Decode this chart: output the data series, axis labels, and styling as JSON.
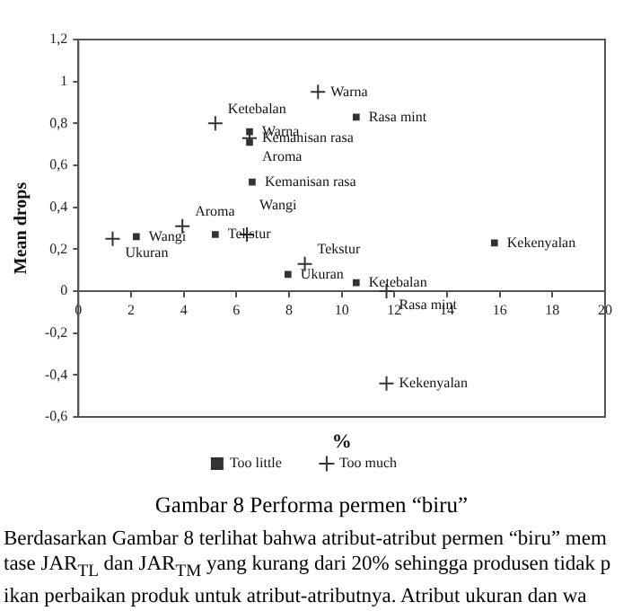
{
  "chart_data": {
    "type": "scatter",
    "title": "Gambar 8 Performa permen “biru”",
    "xlabel": "%",
    "ylabel": "Mean drops",
    "series": [
      {
        "name": "Too little",
        "color": "#333333",
        "marker": "square",
        "x": [
          10.55,
          6.6,
          6.5,
          6.5,
          2.2,
          5.2,
          7.96,
          10.55,
          15.8
        ],
        "values": [
          0.83,
          0.52,
          0.76,
          0.71,
          0.26,
          0.27,
          0.08,
          0.04,
          0.23
        ]
      },
      {
        "name": "Too much",
        "color": "#333333",
        "marker": "cross",
        "x": [
          9.1,
          5.2,
          6.5,
          1.3,
          3.95,
          6.4,
          8.6,
          11.7,
          11.7
        ],
        "values": [
          0.95,
          0.8,
          0.73,
          0.25,
          0.31,
          0.27,
          0.13,
          0,
          -0.44
        ]
      }
    ],
    "xlim": [
      0,
      20
    ],
    "xticks": [
      0,
      2,
      4,
      6,
      8,
      10,
      12,
      14,
      16,
      18,
      20
    ],
    "ylim": [
      -0.6,
      1.2
    ],
    "yticks": [
      {
        "value": -0.6,
        "label": "-0,6"
      },
      {
        "value": -0.4,
        "label": "-0,4"
      },
      {
        "value": -0.2,
        "label": "-0,2"
      },
      0,
      {
        "value": 0.2,
        "label": "0,2"
      },
      {
        "value": 0.4,
        "label": "0,4"
      },
      {
        "value": 0.6,
        "label": "0,6"
      },
      {
        "value": 0.8,
        "label": "0,8"
      },
      1,
      {
        "value": 1.2,
        "label": "1,2"
      }
    ],
    "grid": false,
    "legend": "bottom",
    "annotations": [
      {
        "text": "Rasa mint",
        "x": 10.55,
        "y": 0.83
      },
      {
        "text": "Kemanisan rasa",
        "x": 6.6,
        "y": 0.52
      },
      {
        "text": "Warna",
        "x": 6.5,
        "y": 0.76
      },
      {
        "text": "Aroma",
        "x": 6.5,
        "y": 0.71
      },
      {
        "text": "Wangi",
        "x": 2.2,
        "y": 0.26
      },
      {
        "text": "Tekstur",
        "x": 5.2,
        "y": 0.27
      },
      {
        "text": "Ukuran",
        "x": 7.96,
        "y": 0.08
      },
      {
        "text": "Ketebalan",
        "x": 10.55,
        "y": 0.04
      },
      {
        "text": "Kekenyalan",
        "x": 15.8,
        "y": 0.23
      },
      {
        "text": "Warna",
        "x": 9.1,
        "y": 0.95
      },
      {
        "text": "Ketebalan",
        "x": 5.2,
        "y": 0.8
      },
      {
        "text": "Kemanisan rasa",
        "x": 6.5,
        "y": 0.73
      },
      {
        "text": "Ukuran",
        "x": 1.3,
        "y": 0.25
      },
      {
        "text": "Aroma",
        "x": 3.95,
        "y": 0.31
      },
      {
        "text": "Wangi",
        "x": 6.4,
        "y": 0.27
      },
      {
        "text": "Tekstur",
        "x": 8.6,
        "y": 0.13
      },
      {
        "text": "Rasa mint",
        "x": 11.7,
        "y": 0
      },
      {
        "text": "Kekenyalan",
        "x": 11.7,
        "y": -0.44
      },
      "Berdasarkan Gambar 8 terlihat bahwa atribut-atribut permen “biru” mem",
      "tase JAR$_{TL}$ dan JAR$_{TM}$ yang kurang dari 20% sehingga produsen tidak p",
      "ikan perbaikan produk untuk atribut-atributnya. Atribut ukuran dan wa"
    ]
  }
}
